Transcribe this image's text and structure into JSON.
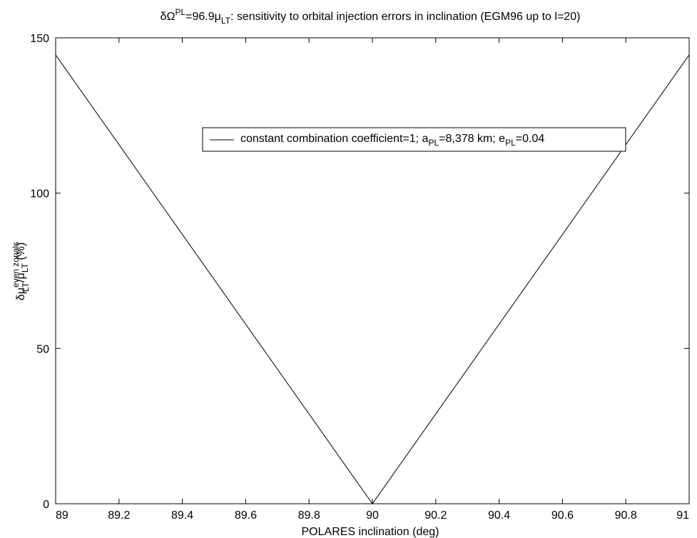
{
  "chart_data": {
    "type": "line",
    "title": {
      "pre": "δΩ",
      "sup": "PL",
      "mid": "=96.9μ",
      "sub": "LT",
      "post": ": sensitivity to orbital injection errors in inclination (EGM96 up to l=20)"
    },
    "xlabel": "POLARES inclination (deg)",
    "ylabel": {
      "pre": "δμ",
      "sup": "even zonals",
      "sub": "LT",
      "mid": "/μ",
      "sub2": "LT",
      "post": " (%)"
    },
    "xlim": [
      89,
      91
    ],
    "ylim": [
      0,
      150
    ],
    "xticks": [
      "89",
      "89.2",
      "89.4",
      "89.6",
      "89.8",
      "90",
      "90.2",
      "90.4",
      "90.6",
      "90.8",
      "91"
    ],
    "xtick_values": [
      89,
      89.2,
      89.4,
      89.6,
      89.8,
      90,
      90.2,
      90.4,
      90.6,
      90.8,
      91
    ],
    "yticks": [
      "0",
      "50",
      "100",
      "150"
    ],
    "ytick_values": [
      0,
      50,
      100,
      150
    ],
    "grid": false,
    "legend_position": "upper-right",
    "series": [
      {
        "legend": {
          "t1": "constant combination coefficient=1; a",
          "s1": "PL",
          "t2": "=8,378 km; e",
          "s2": "PL",
          "t3": "=0.04"
        },
        "color": "#000000",
        "x": [
          89,
          90,
          91
        ],
        "y": [
          144.5,
          0,
          144.5
        ]
      }
    ]
  }
}
